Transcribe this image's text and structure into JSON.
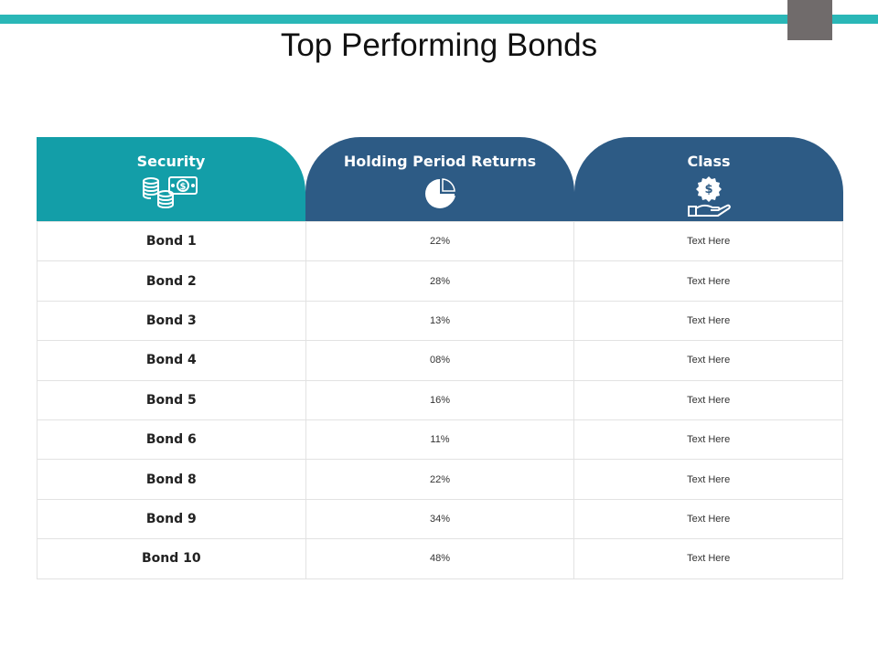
{
  "page": {
    "title": "Top Performing Bonds",
    "accent_color": "#2ab7b7",
    "header_color_primary": "#139ea8",
    "header_color_secondary": "#2d5b85"
  },
  "table": {
    "headers": [
      {
        "label": "Security",
        "icon": "coins-money-icon"
      },
      {
        "label": "Holding Period Returns",
        "icon": "pie-chart-icon"
      },
      {
        "label": "Class",
        "icon": "hand-dollar-icon"
      }
    ],
    "rows": [
      {
        "security": "Bond 1",
        "returns": "22%",
        "class": "Text Here"
      },
      {
        "security": "Bond 2",
        "returns": "28%",
        "class": "Text Here"
      },
      {
        "security": "Bond 3",
        "returns": "13%",
        "class": "Text Here"
      },
      {
        "security": "Bond 4",
        "returns": "08%",
        "class": "Text Here"
      },
      {
        "security": "Bond 5",
        "returns": "16%",
        "class": "Text Here"
      },
      {
        "security": "Bond 6",
        "returns": "11%",
        "class": "Text Here"
      },
      {
        "security": "Bond 8",
        "returns": "22%",
        "class": "Text Here"
      },
      {
        "security": "Bond 9",
        "returns": "34%",
        "class": "Text Here"
      },
      {
        "security": "Bond 10",
        "returns": "48%",
        "class": "Text Here"
      }
    ]
  }
}
